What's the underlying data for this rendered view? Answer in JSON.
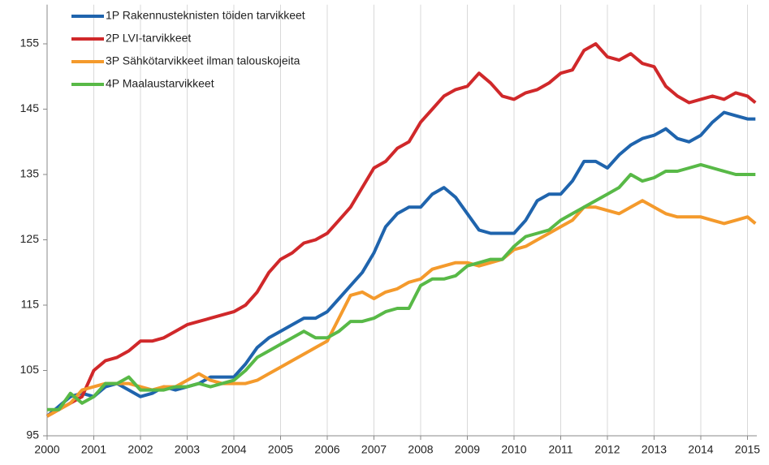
{
  "chart_data": {
    "type": "line",
    "x": [
      2000,
      2000.25,
      2000.5,
      2000.75,
      2001,
      2001.25,
      2001.5,
      2001.75,
      2002,
      2002.25,
      2002.5,
      2002.75,
      2003,
      2003.25,
      2003.5,
      2003.75,
      2004,
      2004.25,
      2004.5,
      2004.75,
      2005,
      2005.25,
      2005.5,
      2005.75,
      2006,
      2006.25,
      2006.5,
      2006.75,
      2007,
      2007.25,
      2007.5,
      2007.75,
      2008,
      2008.25,
      2008.5,
      2008.75,
      2009,
      2009.25,
      2009.5,
      2009.75,
      2010,
      2010.25,
      2010.5,
      2010.75,
      2011,
      2011.25,
      2011.5,
      2011.75,
      2012,
      2012.25,
      2012.5,
      2012.75,
      2013,
      2013.25,
      2013.5,
      2013.75,
      2014,
      2014.25,
      2014.5,
      2014.75,
      2015,
      2015.17
    ],
    "series": [
      {
        "name": "1P Rakennusteknisten töiden tarvikkeet",
        "color": "#1f64ad",
        "values": [
          98,
          99.5,
          101,
          101.5,
          101,
          102.5,
          103,
          102,
          101,
          101.5,
          102.5,
          102,
          102.5,
          103,
          104,
          104,
          104,
          106,
          108.5,
          110,
          111,
          112,
          113,
          113,
          114,
          116,
          118,
          120,
          123,
          127,
          129,
          130,
          130,
          132,
          133,
          131.5,
          129,
          126.5,
          126,
          126,
          126,
          128,
          131,
          132,
          132,
          134,
          137,
          137,
          136,
          138,
          139.5,
          140.5,
          141,
          142,
          140.5,
          140,
          141,
          143,
          144.5,
          144,
          143.5,
          143.5
        ]
      },
      {
        "name": "2P LVI-tarvikkeet",
        "color": "#d0282a",
        "values": [
          98,
          99,
          100,
          101,
          105,
          106.5,
          107,
          108,
          109.5,
          109.5,
          110,
          111,
          112,
          112.5,
          113,
          113.5,
          114,
          115,
          117,
          120,
          122,
          123,
          124.5,
          125,
          126,
          128,
          130,
          133,
          136,
          137,
          139,
          140,
          143,
          145,
          147,
          148,
          148.5,
          150.5,
          149,
          147,
          146.5,
          147.5,
          148,
          149,
          150.5,
          151,
          154,
          155,
          153,
          152.5,
          153.5,
          152,
          151.5,
          148.5,
          147,
          146,
          146.5,
          147,
          146.5,
          147.5,
          147,
          146
        ]
      },
      {
        "name": "3P Sähkötarvikkeet ilman talouskojeita",
        "color": "#f49a2c",
        "values": [
          98,
          99,
          100,
          102,
          102.5,
          103,
          103,
          103,
          102.5,
          102,
          102.5,
          102.5,
          103.5,
          104.5,
          103.5,
          103,
          103,
          103,
          103.5,
          104.5,
          105.5,
          106.5,
          107.5,
          108.5,
          109.5,
          113,
          116.5,
          117,
          116,
          117,
          117.5,
          118.5,
          119,
          120.5,
          121,
          121.5,
          121.5,
          121,
          121.5,
          122,
          123.5,
          124,
          125,
          126,
          127,
          128,
          130,
          130,
          129.5,
          129,
          130,
          131,
          130,
          129,
          128.5,
          128.5,
          128.5,
          128,
          127.5,
          128,
          128.5,
          127.5
        ]
      },
      {
        "name": "4P Maalaustarvikkeet",
        "color": "#58b947",
        "values": [
          99,
          99,
          101.5,
          100,
          101,
          103,
          103,
          104,
          102,
          102,
          102,
          102.5,
          102.5,
          103,
          102.5,
          103,
          103.5,
          105,
          107,
          108,
          109,
          110,
          111,
          110,
          110,
          111,
          112.5,
          112.5,
          113,
          114,
          114.5,
          114.5,
          118,
          119,
          119,
          119.5,
          121,
          121.5,
          122,
          122,
          124,
          125.5,
          126,
          126.5,
          128,
          129,
          130,
          131,
          132,
          133,
          135,
          134,
          134.5,
          135.5,
          135.5,
          136,
          136.5,
          136,
          135.5,
          135,
          135,
          135
        ]
      }
    ],
    "xlim": [
      2000,
      2015.2
    ],
    "xticks": [
      2000,
      2001,
      2002,
      2003,
      2004,
      2005,
      2006,
      2007,
      2008,
      2009,
      2010,
      2011,
      2012,
      2013,
      2014,
      2015
    ],
    "ylim": [
      95,
      161
    ],
    "yticks": [
      95,
      105,
      115,
      125,
      135,
      145,
      155
    ],
    "grid": "x",
    "legend": "upper left"
  }
}
